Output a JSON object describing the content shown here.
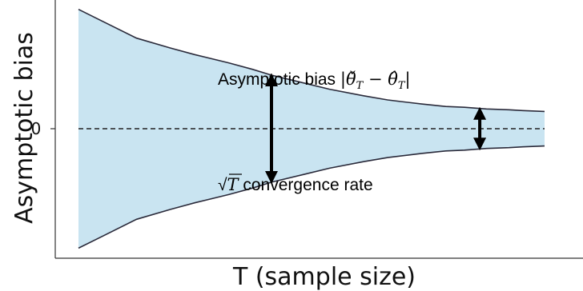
{
  "chart_data": {
    "type": "area",
    "title": "",
    "xlabel": "T (sample size)",
    "ylabel": "Asymptotic bias",
    "y_ticks": [
      "0"
    ],
    "grid": false,
    "legend": "none",
    "series": [
      {
        "role": "upper-bound",
        "x": [
          1,
          2,
          3,
          4,
          6,
          8,
          10,
          15,
          20,
          30,
          40,
          60,
          80,
          100,
          130,
          170,
          200,
          260
        ],
        "y": [
          1.45,
          1.1,
          0.98,
          0.9,
          0.8,
          0.72,
          0.65,
          0.55,
          0.48,
          0.4,
          0.35,
          0.3,
          0.27,
          0.26,
          0.24,
          0.23,
          0.22,
          0.21
        ]
      },
      {
        "role": "lower-bound",
        "x": [
          1,
          2,
          3,
          4,
          6,
          8,
          10,
          15,
          20,
          30,
          40,
          60,
          80,
          100,
          130,
          170,
          200,
          260
        ],
        "y": [
          -1.45,
          -1.1,
          -0.98,
          -0.9,
          -0.8,
          -0.72,
          -0.65,
          -0.55,
          -0.48,
          -0.4,
          -0.35,
          -0.3,
          -0.27,
          -0.26,
          -0.24,
          -0.23,
          -0.22,
          -0.21
        ]
      }
    ],
    "zero_line": {
      "y": 0,
      "style": "dashed"
    },
    "annotations": [
      {
        "id": "bias",
        "text_prefix": "Asymptotic bias ",
        "math": "|θ̌",
        "math_sub": "T",
        "math_mid": " − θ̂",
        "math_sub2": "T",
        "math_end": "|"
      },
      {
        "id": "rate",
        "sqrt_symbol": "√",
        "sqrt_arg": "T",
        "text": " convergence rate"
      }
    ],
    "arrows": [
      {
        "at_x": 10,
        "from_y": -0.65,
        "to_y": 0.65
      },
      {
        "at_x": 120,
        "from_y": -0.245,
        "to_y": 0.245
      }
    ],
    "colors": {
      "fill": "#c9e4f1",
      "bound": "#2a2a3a",
      "zero_line": "#222222",
      "arrow": "#000000"
    }
  }
}
